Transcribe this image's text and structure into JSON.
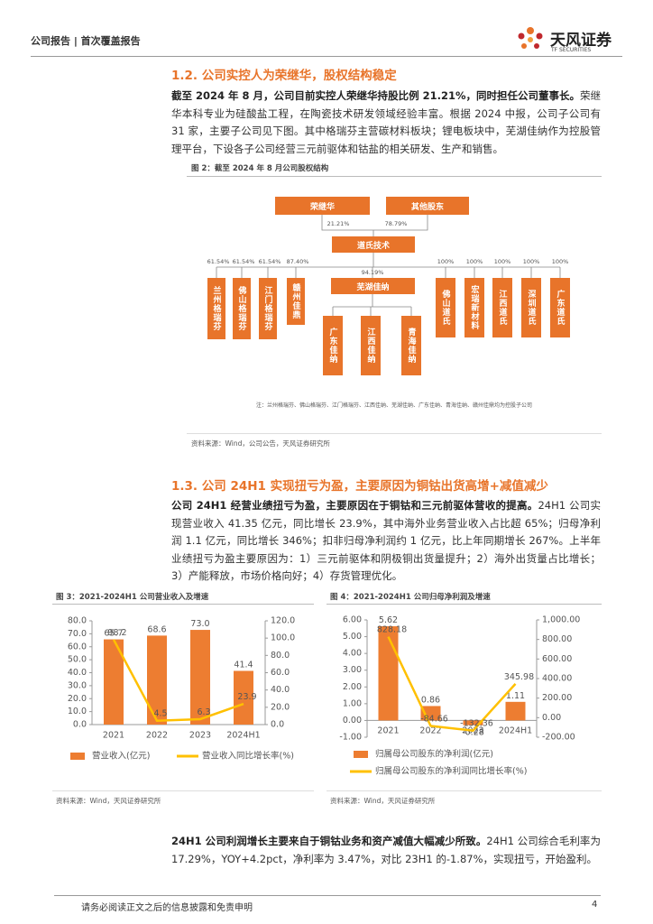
{
  "header": {
    "left": "公司报告 | 首次覆盖报告",
    "logo": "天风证券",
    "logo_sub": "TF SECURITIES"
  },
  "section_1_2": {
    "heading": "1.2. 公司实控人为荣继华，股权结构稳定",
    "paragraph": {
      "lead": "截至 2024 年 8 月，公司目前实控人荣继华持股比例 21.21%，同时担任公司董事长。",
      "text": "荣继华本科专业为硅酸盐工程，在陶瓷技术研发领域经验丰富。根据 2024 中报，公司子公司有 31 家，主要子公司见下图。其中格瑞芬主营碳材料板块；锂电板块中，芜湖佳纳作为控股管理平台，下设各子公司经营三元前驱体和钴盐的相关研发、生产和销售。"
    }
  },
  "figure2": {
    "caption": "图 2：截至 2024 年 8 月公司股权结构",
    "shareholders": [
      "荣继华",
      "其他股东"
    ],
    "shareholder_pct": [
      "21.21%",
      "78.79%"
    ],
    "company": "道氏技术",
    "left_subsidiaries": [
      "兰州格瑞芬",
      "佛山格瑞芬",
      "江门格瑞芬",
      "赣州佳鼎"
    ],
    "left_pct": [
      "61.54%",
      "61.54%",
      "61.54%",
      "87.40%"
    ],
    "holding": "芜湖佳纳",
    "holding_pct": "94.19%",
    "holding_children": [
      "广东佳纳",
      "江西佳纳",
      "青海佳纳"
    ],
    "right_subsidiaries": [
      "佛山道氏",
      "宏瑞新材料",
      "江西道氏",
      "深圳道氏",
      "广东道氏"
    ],
    "right_pct": [
      "100%",
      "100%",
      "100%",
      "100%",
      "100%"
    ],
    "note": "注：兰州格瑞芬、佛山格瑞芬、江门格瑞芬、江西佳纳、芜湖佳纳、广东佳纳、青海佳纳、赣州佳鼎均为控股子公司",
    "source": "资料来源：Wind，公司公告，天风证券研究所"
  },
  "section_1_3": {
    "heading": "1.3. 公司 24H1 实现扭亏为盈，主要原因为铜钴出货高增+减值减少",
    "paragraph": {
      "lead": "公司 24H1 经营业绩扭亏为盈，主要原因在于铜钴和三元前驱体营收的提高。",
      "text": "24H1 公司实现营业收入 41.35 亿元，同比增长 23.9%，其中海外业务营业收入占比超 65%；归母净利润 1.1 亿元，同比增长 346%；扣非归母净利润约 1 亿元，比上年同期增长 267%。上半年业绩扭亏为盈主要原因为：1）三元前驱体和阴极铜出货量提升；2）海外出货量占比增长；3）产能释放，市场价格向好；4）存货管理优化。"
    }
  },
  "figure3": {
    "caption": "图 3：2021-2024H1 公司营业收入及增速",
    "source": "资料来源：Wind，天风证券研究所",
    "chart": {
      "type": "bar-line",
      "categories": [
        "2021",
        "2022",
        "2023",
        "2024H1"
      ],
      "series": [
        {
          "name": "营业收入(亿元)",
          "type": "bar",
          "color": "#ed7d31",
          "values": [
            65.7,
            68.6,
            73.0,
            41.4
          ],
          "value_labels": [
            "65.7",
            "68.6",
            "73.0",
            "41.4"
          ]
        },
        {
          "name": "营业收入同比增长率(%)",
          "type": "line",
          "axis": "y2",
          "color": "#ffc000",
          "values": [
            98.2,
            4.5,
            6.3,
            23.9
          ]
        }
      ],
      "ylim": [
        0,
        80
      ],
      "yticks": [
        {
          "value": 0,
          "label": "0.0"
        },
        {
          "value": 10,
          "label": "10.0"
        },
        {
          "value": 20,
          "label": "20.0"
        },
        {
          "value": 30,
          "label": "30.0"
        },
        {
          "value": 40,
          "label": "40.0"
        },
        {
          "value": 50,
          "label": "50.0"
        },
        {
          "value": 60,
          "label": "60.0"
        },
        {
          "value": 70,
          "label": "70.0"
        },
        {
          "value": 80,
          "label": "80.0"
        }
      ],
      "y2lim": [
        0,
        120
      ],
      "y2ticks": [
        {
          "value": 0,
          "label": "0.0"
        },
        {
          "value": 20,
          "label": "20.0"
        },
        {
          "value": 40,
          "label": "40.0"
        },
        {
          "value": 60,
          "label": "60.0"
        },
        {
          "value": 80,
          "label": "80.0"
        },
        {
          "value": 100,
          "label": "100.0"
        },
        {
          "value": 120,
          "label": "120.0"
        }
      ]
    }
  },
  "figure4": {
    "caption": "图 4：2021-2024H1 公司归母净利润及增速",
    "source": "资料来源：Wind，天风证券研究所",
    "chart": {
      "type": "bar-line",
      "categories": [
        "2021",
        "2022",
        "2023",
        "2024H1"
      ],
      "series": [
        {
          "name": "归属母公司股东的净利润(亿元)",
          "type": "bar",
          "color": "#ed7d31",
          "values": [
            5.62,
            0.86,
            -0.28,
            1.11
          ]
        },
        {
          "name": "归属母公司股东的净利润同比增长率(%)",
          "type": "line",
          "axis": "y2",
          "color": "#ffc000",
          "values": [
            828.18,
            -84.66,
            -132.36,
            345.98
          ]
        }
      ],
      "ylim": [
        -1,
        6
      ],
      "yticks": [
        {
          "value": -1,
          "label": "-1.00"
        },
        {
          "value": 0,
          "label": "0.00"
        },
        {
          "value": 1,
          "label": "1.00"
        },
        {
          "value": 2,
          "label": "2.00"
        },
        {
          "value": 3,
          "label": "3.00"
        },
        {
          "value": 4,
          "label": "4.00"
        },
        {
          "value": 5,
          "label": "5.00"
        },
        {
          "value": 6,
          "label": "6.00"
        }
      ],
      "y2lim": [
        -200,
        1000
      ],
      "y2ticks": [
        {
          "value": -200,
          "label": "-200.00"
        },
        {
          "value": 0,
          "label": "0.00"
        },
        {
          "value": 200,
          "label": "200.00"
        },
        {
          "value": 400,
          "label": "400.00"
        },
        {
          "value": 600,
          "label": "600.00"
        },
        {
          "value": 800,
          "label": "800.00"
        },
        {
          "value": 1000,
          "label": "1,000.00"
        }
      ]
    }
  },
  "paragraph_3": {
    "lead": "24H1 公司利润增长主要来自于铜钴业务和资产减值大幅减少所致。",
    "text": "24H1 公司综合毛利率为 17.29%，YOY+4.2pct，净利率为 3.47%，对比 23H1 的-1.87%，实现扭亏，开始盈利。"
  },
  "footer": {
    "disclaimer": "请务必阅读正文之后的信息披露和免责申明",
    "page": 4
  }
}
